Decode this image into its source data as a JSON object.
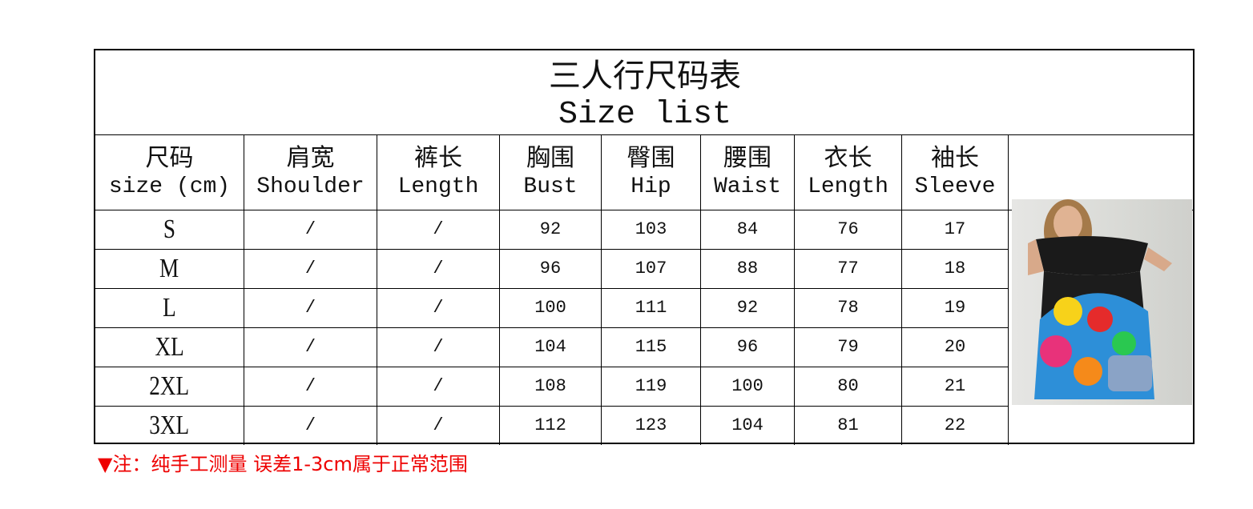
{
  "title": {
    "zh": "三人行尺码表",
    "en": "Size list"
  },
  "columns": [
    {
      "zh": "尺码",
      "en": "size (cm)"
    },
    {
      "zh": "肩宽",
      "en": "Shoulder"
    },
    {
      "zh": "裤长",
      "en": "Length"
    },
    {
      "zh": "胸围",
      "en": "Bust"
    },
    {
      "zh": "臀围",
      "en": "Hip"
    },
    {
      "zh": "腰围",
      "en": "Waist"
    },
    {
      "zh": "衣长",
      "en": "Length"
    },
    {
      "zh": "袖长",
      "en": "Sleeve"
    }
  ],
  "rows": [
    [
      "S",
      "/",
      "/",
      "92",
      "103",
      "84",
      "76",
      "17"
    ],
    [
      "M",
      "/",
      "/",
      "96",
      "107",
      "88",
      "77",
      "18"
    ],
    [
      "L",
      "/",
      "/",
      "100",
      "111",
      "92",
      "78",
      "19"
    ],
    [
      "XL",
      "/",
      "/",
      "104",
      "115",
      "96",
      "79",
      "20"
    ],
    [
      "2XL",
      "/",
      "/",
      "108",
      "119",
      "100",
      "80",
      "21"
    ],
    [
      "3XL",
      "/",
      "/",
      "112",
      "123",
      "104",
      "81",
      "22"
    ]
  ],
  "note": "▼注：纯手工测量 误差1-3cm属于正常范围",
  "colors": {
    "note": "#ee0000",
    "border": "#000000"
  }
}
